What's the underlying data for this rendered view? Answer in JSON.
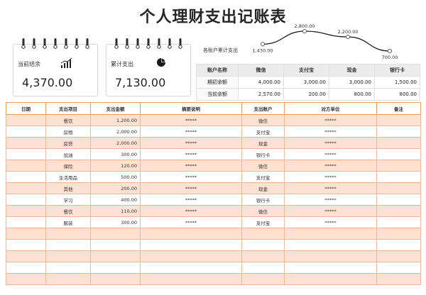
{
  "title": "个人理财支出记账表",
  "cards": {
    "balance": {
      "label": "当前结余",
      "value": "4,370.00",
      "icon": "bar-chart-icon"
    },
    "total": {
      "label": "累计支出",
      "value": "7,130.00",
      "icon": "pie-chart-icon"
    }
  },
  "accounts": {
    "label": "各账户累计支出",
    "headers": [
      "账户名称",
      "微信",
      "支付宝",
      "现金",
      "银行卡"
    ],
    "rows": [
      {
        "label": "期初余额",
        "values": [
          "4,000.00",
          "3,000.00",
          "3,000.00",
          "1,500.00"
        ]
      },
      {
        "label": "当前余额",
        "values": [
          "2,570.00",
          "200.00",
          "800.00",
          "800.00"
        ]
      }
    ]
  },
  "chart_data": {
    "type": "line",
    "categories": [
      "微信",
      "支付宝",
      "现金",
      "银行卡"
    ],
    "values": [
      1430,
      2800,
      2200,
      700
    ],
    "data_labels": [
      "1,430.00",
      "2,800.00",
      "2,200.00",
      "700.00"
    ],
    "title": "",
    "xlabel": "",
    "ylabel": "",
    "grid": false
  },
  "ledger": {
    "headers": [
      "日期",
      "支出项目",
      "支出金额",
      "摘要说明",
      "支出账户",
      "对方单位",
      "备注"
    ],
    "rows": [
      {
        "date": "",
        "item": "餐饮",
        "amount": "1,200.00",
        "summary": "*****",
        "account": "微信",
        "party": "*****",
        "note": ""
      },
      {
        "date": "",
        "item": "房租",
        "amount": "2,000.00",
        "summary": "*****",
        "account": "支付宝",
        "party": "*****",
        "note": ""
      },
      {
        "date": "",
        "item": "房贷",
        "amount": "2,000.00",
        "summary": "*****",
        "account": "现金",
        "party": "*****",
        "note": ""
      },
      {
        "date": "",
        "item": "加油",
        "amount": "300.00",
        "summary": "*****",
        "account": "银行卡",
        "party": "*****",
        "note": ""
      },
      {
        "date": "",
        "item": "保险",
        "amount": "120.00",
        "summary": "*****",
        "account": "微信",
        "party": "*****",
        "note": ""
      },
      {
        "date": "",
        "item": "生活用品",
        "amount": "500.00",
        "summary": "*****",
        "account": "支付宝",
        "party": "*****",
        "note": ""
      },
      {
        "date": "",
        "item": "其他",
        "amount": "200.00",
        "summary": "*****",
        "account": "现金",
        "party": "*****",
        "note": ""
      },
      {
        "date": "",
        "item": "学习",
        "amount": "400.00",
        "summary": "*****",
        "account": "银行卡",
        "party": "*****",
        "note": ""
      },
      {
        "date": "",
        "item": "餐饮",
        "amount": "110.00",
        "summary": "*****",
        "account": "微信",
        "party": "*****",
        "note": ""
      },
      {
        "date": "",
        "item": "服装",
        "amount": "300.00",
        "summary": "*****",
        "account": "支付宝",
        "party": "*****",
        "note": ""
      },
      {
        "date": "",
        "item": "",
        "amount": "",
        "summary": "",
        "account": "",
        "party": "",
        "note": ""
      },
      {
        "date": "",
        "item": "",
        "amount": "",
        "summary": "",
        "account": "",
        "party": "",
        "note": ""
      },
      {
        "date": "",
        "item": "",
        "amount": "",
        "summary": "",
        "account": "",
        "party": "",
        "note": ""
      },
      {
        "date": "",
        "item": "",
        "amount": "",
        "summary": "",
        "account": "",
        "party": "",
        "note": ""
      },
      {
        "date": "",
        "item": "",
        "amount": "",
        "summary": "",
        "account": "",
        "party": "",
        "note": ""
      }
    ]
  },
  "colors": {
    "header_border": "#e59a6b",
    "odd_row": "#fde1d2",
    "line": "#1a1a1a"
  }
}
